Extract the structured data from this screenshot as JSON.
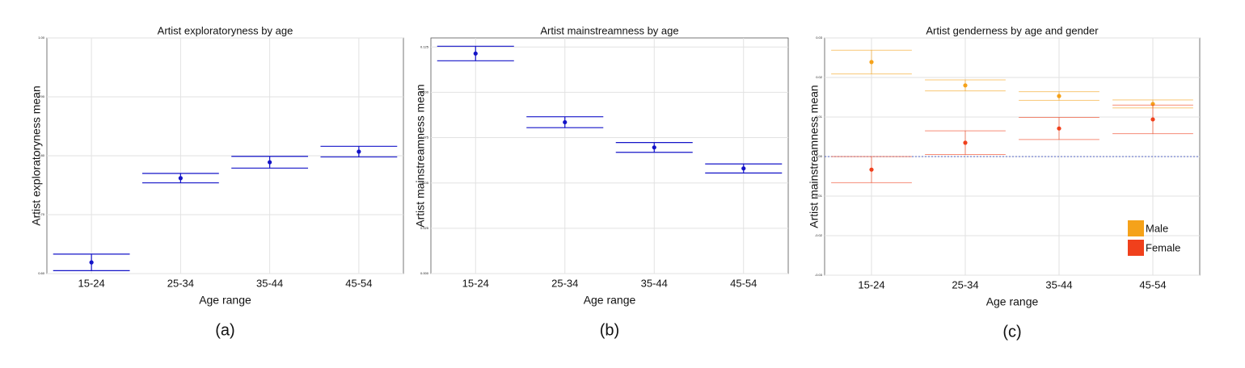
{
  "chart_data": [
    {
      "type": "crossbar",
      "title": "Artist exploratoryness by age",
      "xlabel": "Age range",
      "ylabel": "Artist exploratoryness mean",
      "caption": "(a)",
      "categories": [
        "15-24",
        "25-34",
        "35-44",
        "45-54"
      ],
      "values": [
        0.619,
        0.762,
        0.789,
        0.807
      ],
      "errors": [
        0.014,
        0.008,
        0.01,
        0.009
      ],
      "color": "#1414c8",
      "ylim": [
        0.6,
        1.0
      ],
      "yticks": [
        {
          "value": 0.6,
          "label": "0.60"
        },
        {
          "value": 0.7,
          "label": "0.70"
        },
        {
          "value": 0.8,
          "label": "0.80"
        },
        {
          "value": 0.9,
          "label": "0.90"
        },
        {
          "value": 1.0,
          "label": "1.00"
        }
      ],
      "grid": true
    },
    {
      "type": "crossbar",
      "title": "Artist mainstreamness by age",
      "xlabel": "Age range",
      "ylabel": "Artist mainstreamness mean",
      "caption": "(b)",
      "categories": [
        "15-24",
        "25-34",
        "35-44",
        "45-54"
      ],
      "values": [
        0.1214,
        0.0835,
        0.0696,
        0.058
      ],
      "errors": [
        0.004,
        0.003,
        0.0027,
        0.0025
      ],
      "color": "#1414c8",
      "ylim": [
        0,
        0.13
      ],
      "yticks": [
        {
          "value": 0,
          "label": "0.000"
        },
        0.025,
        0.05,
        0.075,
        {
          "value": 0.1,
          "label": "0.100"
        },
        0.125
      ],
      "grid": true
    },
    {
      "type": "crossbar",
      "title": "Artist genderness by age and gender",
      "xlabel": "Age range",
      "ylabel": "Artist mainstreamness mean",
      "caption": "(c)",
      "categories": [
        "15-24",
        "25-34",
        "35-44",
        "45-54"
      ],
      "series": [
        {
          "name": "Male",
          "color": "#f5a21a",
          "values": [
            0.0239,
            0.018,
            0.0153,
            0.0133
          ],
          "errors": [
            0.003,
            0.0014,
            0.0011,
            0.001
          ]
        },
        {
          "name": "Female",
          "color": "#f0401c",
          "values": [
            -0.0033,
            0.0035,
            0.0071,
            0.0094
          ],
          "errors": [
            0.0033,
            0.003,
            0.0028,
            0.0036
          ]
        }
      ],
      "ylim": [
        -0.03,
        0.03
      ],
      "yticks": [
        -0.03,
        -0.02,
        -0.01,
        {
          "value": 0,
          "label": "0.00"
        },
        0.01,
        0.02,
        0.03
      ],
      "reference_line": 0,
      "reference_color": "#5060c0",
      "grid": true,
      "legend": "bottom-right"
    }
  ]
}
